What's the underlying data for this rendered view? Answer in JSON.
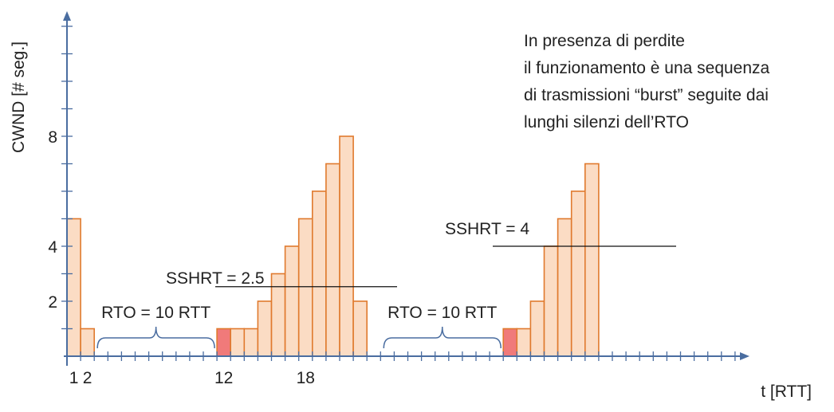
{
  "chart_data": {
    "type": "bar",
    "ylabel": "CWND [# seg.]",
    "xlabel": "t [RTT]",
    "y_tick_labels": [
      "2",
      "4",
      "8"
    ],
    "x_tick_labels": [
      "1",
      "2",
      "12",
      "18"
    ],
    "bars": [
      {
        "t": 1,
        "cwnd": 5,
        "lost": false
      },
      {
        "t": 2,
        "cwnd": 1,
        "lost": false
      },
      {
        "t": 12,
        "cwnd": 1,
        "lost": true
      },
      {
        "t": 13,
        "cwnd": 1,
        "lost": false
      },
      {
        "t": 14,
        "cwnd": 1,
        "lost": false
      },
      {
        "t": 15,
        "cwnd": 2,
        "lost": false
      },
      {
        "t": 16,
        "cwnd": 3,
        "lost": false
      },
      {
        "t": 17,
        "cwnd": 4,
        "lost": false
      },
      {
        "t": 18,
        "cwnd": 5,
        "lost": false
      },
      {
        "t": 19,
        "cwnd": 6,
        "lost": false
      },
      {
        "t": 20,
        "cwnd": 7,
        "lost": false
      },
      {
        "t": 21,
        "cwnd": 8,
        "lost": false
      },
      {
        "t": 22,
        "cwnd": 2,
        "lost": false
      },
      {
        "t": 33,
        "cwnd": 1,
        "lost": true
      },
      {
        "t": 34,
        "cwnd": 1,
        "lost": false
      },
      {
        "t": 35,
        "cwnd": 2,
        "lost": false
      },
      {
        "t": 36,
        "cwnd": 4,
        "lost": false
      },
      {
        "t": 37,
        "cwnd": 5,
        "lost": false
      },
      {
        "t": 38,
        "cwnd": 6,
        "lost": false
      },
      {
        "t": 39,
        "cwnd": 7,
        "lost": false
      }
    ],
    "thresholds": [
      {
        "label": "SSHRT = 2.5",
        "value": 2.5
      },
      {
        "label": "SSHRT = 4",
        "value": 4
      }
    ],
    "timeouts": [
      {
        "label": "RTO = 10 RTT",
        "from": 2,
        "to": 12
      },
      {
        "label": "RTO = 10 RTT",
        "from": 23,
        "to": 33
      }
    ],
    "colors": {
      "bar": "#fbdcc4",
      "bar_border": "#e07a2e",
      "lost": "#f07a7a",
      "axis": "#4a6da0",
      "brace": "#4a6da0"
    }
  },
  "annotation": {
    "lines": [
      "In presenza di perdite",
      "il funzionamento  è una sequenza",
      "di trasmissioni “burst” seguite dai",
      "lunghi silenzi dell’RTO"
    ]
  }
}
